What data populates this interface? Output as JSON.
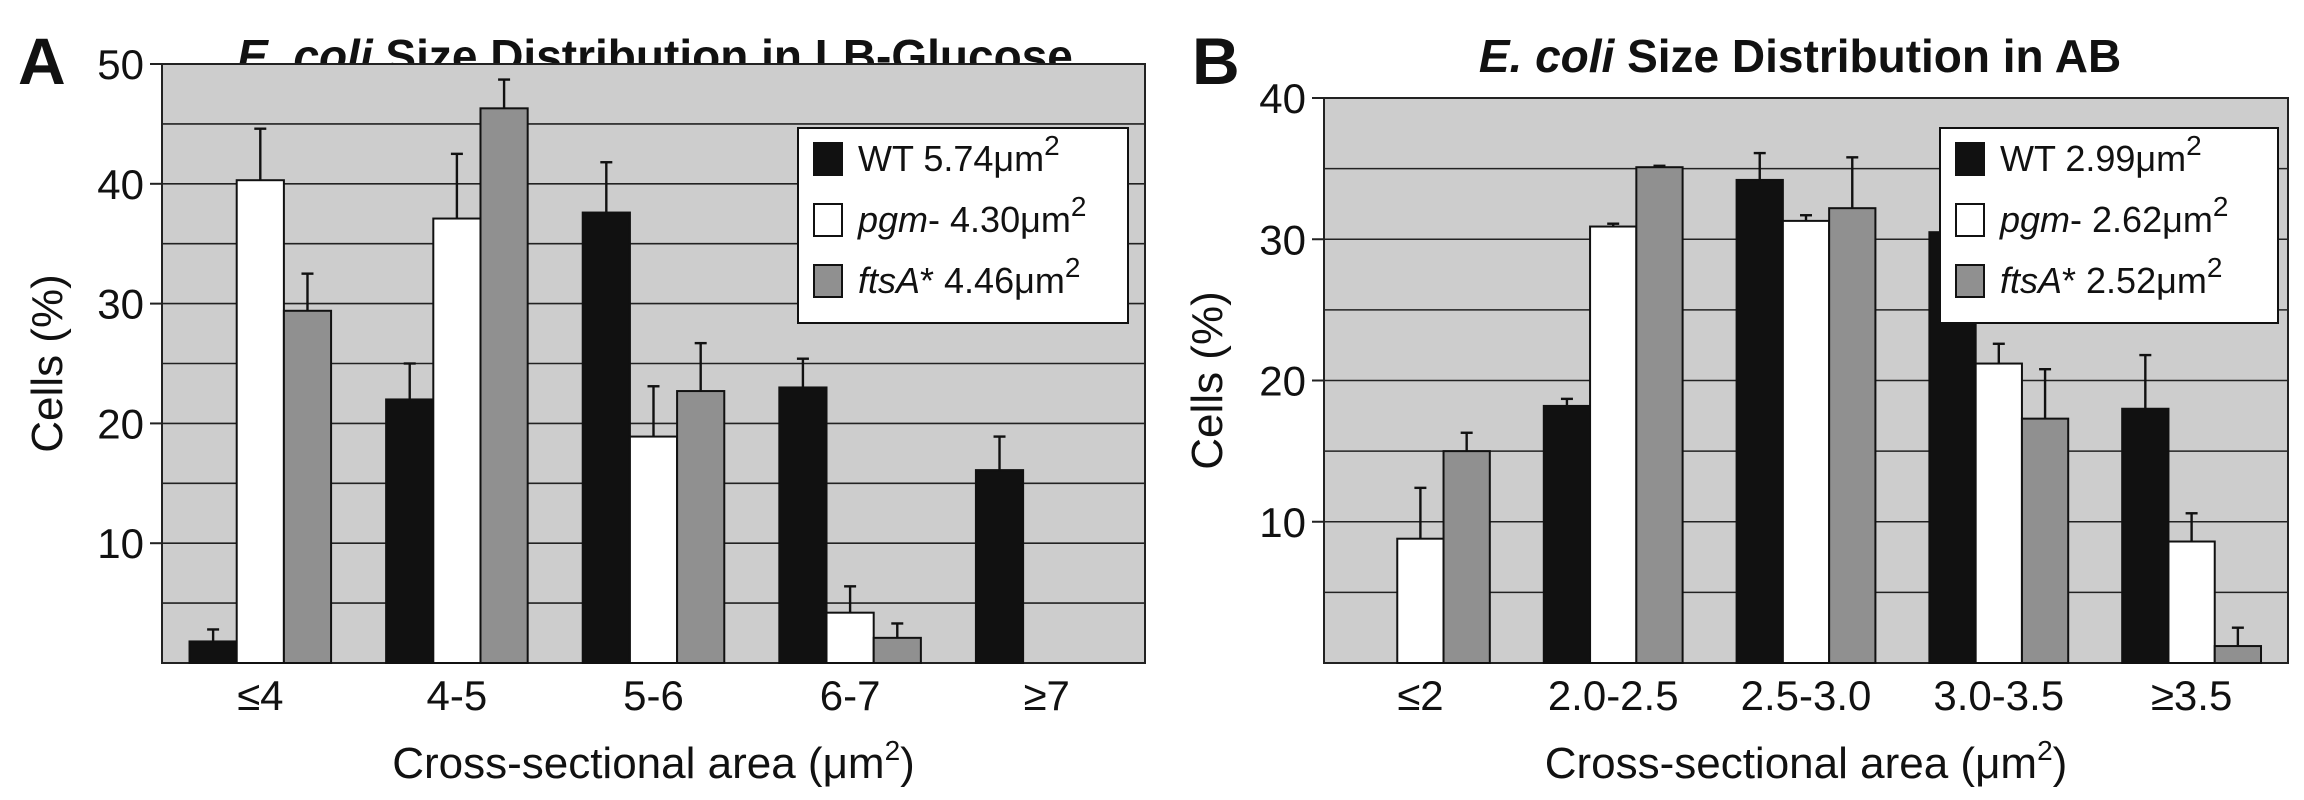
{
  "chart_data": [
    {
      "panel": "A",
      "type": "bar",
      "title_italic": "E. coli",
      "title_rest": " Size Distribution in LB-Glucose",
      "xlabel": "Cross-sectional area (μm",
      "xlabel_sup": "2",
      "xlabel_end": ")",
      "ylabel": "Cells (%)",
      "ylim": [
        0,
        50
      ],
      "yticks": [
        10,
        20,
        30,
        40,
        50
      ],
      "minor_gridlines": [
        5,
        15,
        25,
        35,
        45
      ],
      "categories": [
        "≤4",
        "4-5",
        "5-6",
        "6-7",
        "≥7"
      ],
      "series": [
        {
          "name_italic": "",
          "name_rest": "WT",
          "value_text": "5.74μm",
          "sup": "2",
          "color": "#111111",
          "values": [
            1.8,
            22.0,
            37.6,
            23.0,
            16.1
          ],
          "errors": [
            1.0,
            3.0,
            4.2,
            2.4,
            2.8
          ]
        },
        {
          "name_italic": "pgm",
          "name_rest": "-",
          "value_text": "4.30μm",
          "sup": "2",
          "color": "#ffffff",
          "values": [
            40.3,
            37.1,
            18.9,
            4.2,
            0
          ],
          "errors": [
            4.3,
            5.4,
            4.2,
            2.2,
            0
          ]
        },
        {
          "name_italic": "ftsA",
          "name_rest": "*",
          "value_text": "4.46μm",
          "sup": "2",
          "color": "#909090",
          "values": [
            29.4,
            46.3,
            22.7,
            2.1,
            0
          ],
          "errors": [
            3.1,
            2.4,
            4.0,
            1.2,
            0
          ]
        }
      ],
      "background": "#cdcdcd",
      "legend_position": "top-right"
    },
    {
      "panel": "B",
      "type": "bar",
      "title_italic": "E. coli",
      "title_rest": " Size Distribution in AB",
      "xlabel": "Cross-sectional area (μm",
      "xlabel_sup": "2",
      "xlabel_end": ")",
      "ylabel": "Cells (%)",
      "ylim": [
        0,
        40
      ],
      "yticks": [
        10,
        20,
        30,
        40
      ],
      "minor_gridlines": [
        5,
        15,
        25,
        35
      ],
      "categories": [
        "≤2",
        "2.0-2.5",
        "2.5-3.0",
        "3.0-3.5",
        "≥3.5"
      ],
      "series": [
        {
          "name_italic": "",
          "name_rest": "WT",
          "value_text": "2.99μm",
          "sup": "2",
          "color": "#111111",
          "values": [
            0,
            18.2,
            34.2,
            30.5,
            18.0
          ],
          "errors": [
            0,
            0.5,
            1.9,
            1.2,
            3.8
          ]
        },
        {
          "name_italic": "pgm",
          "name_rest": "-",
          "value_text": "2.62μm",
          "sup": "2",
          "color": "#ffffff",
          "values": [
            8.8,
            30.9,
            31.3,
            21.2,
            8.6
          ],
          "errors": [
            3.6,
            0.2,
            0.4,
            1.4,
            2.0
          ]
        },
        {
          "name_italic": "ftsA",
          "name_rest": "*",
          "value_text": "2.52μm",
          "sup": "2",
          "color": "#909090",
          "values": [
            15.0,
            35.1,
            32.2,
            17.3,
            1.2
          ],
          "errors": [
            1.3,
            0.1,
            3.6,
            3.5,
            1.3
          ]
        }
      ],
      "background": "#cdcdcd",
      "legend_position": "top-right"
    }
  ]
}
